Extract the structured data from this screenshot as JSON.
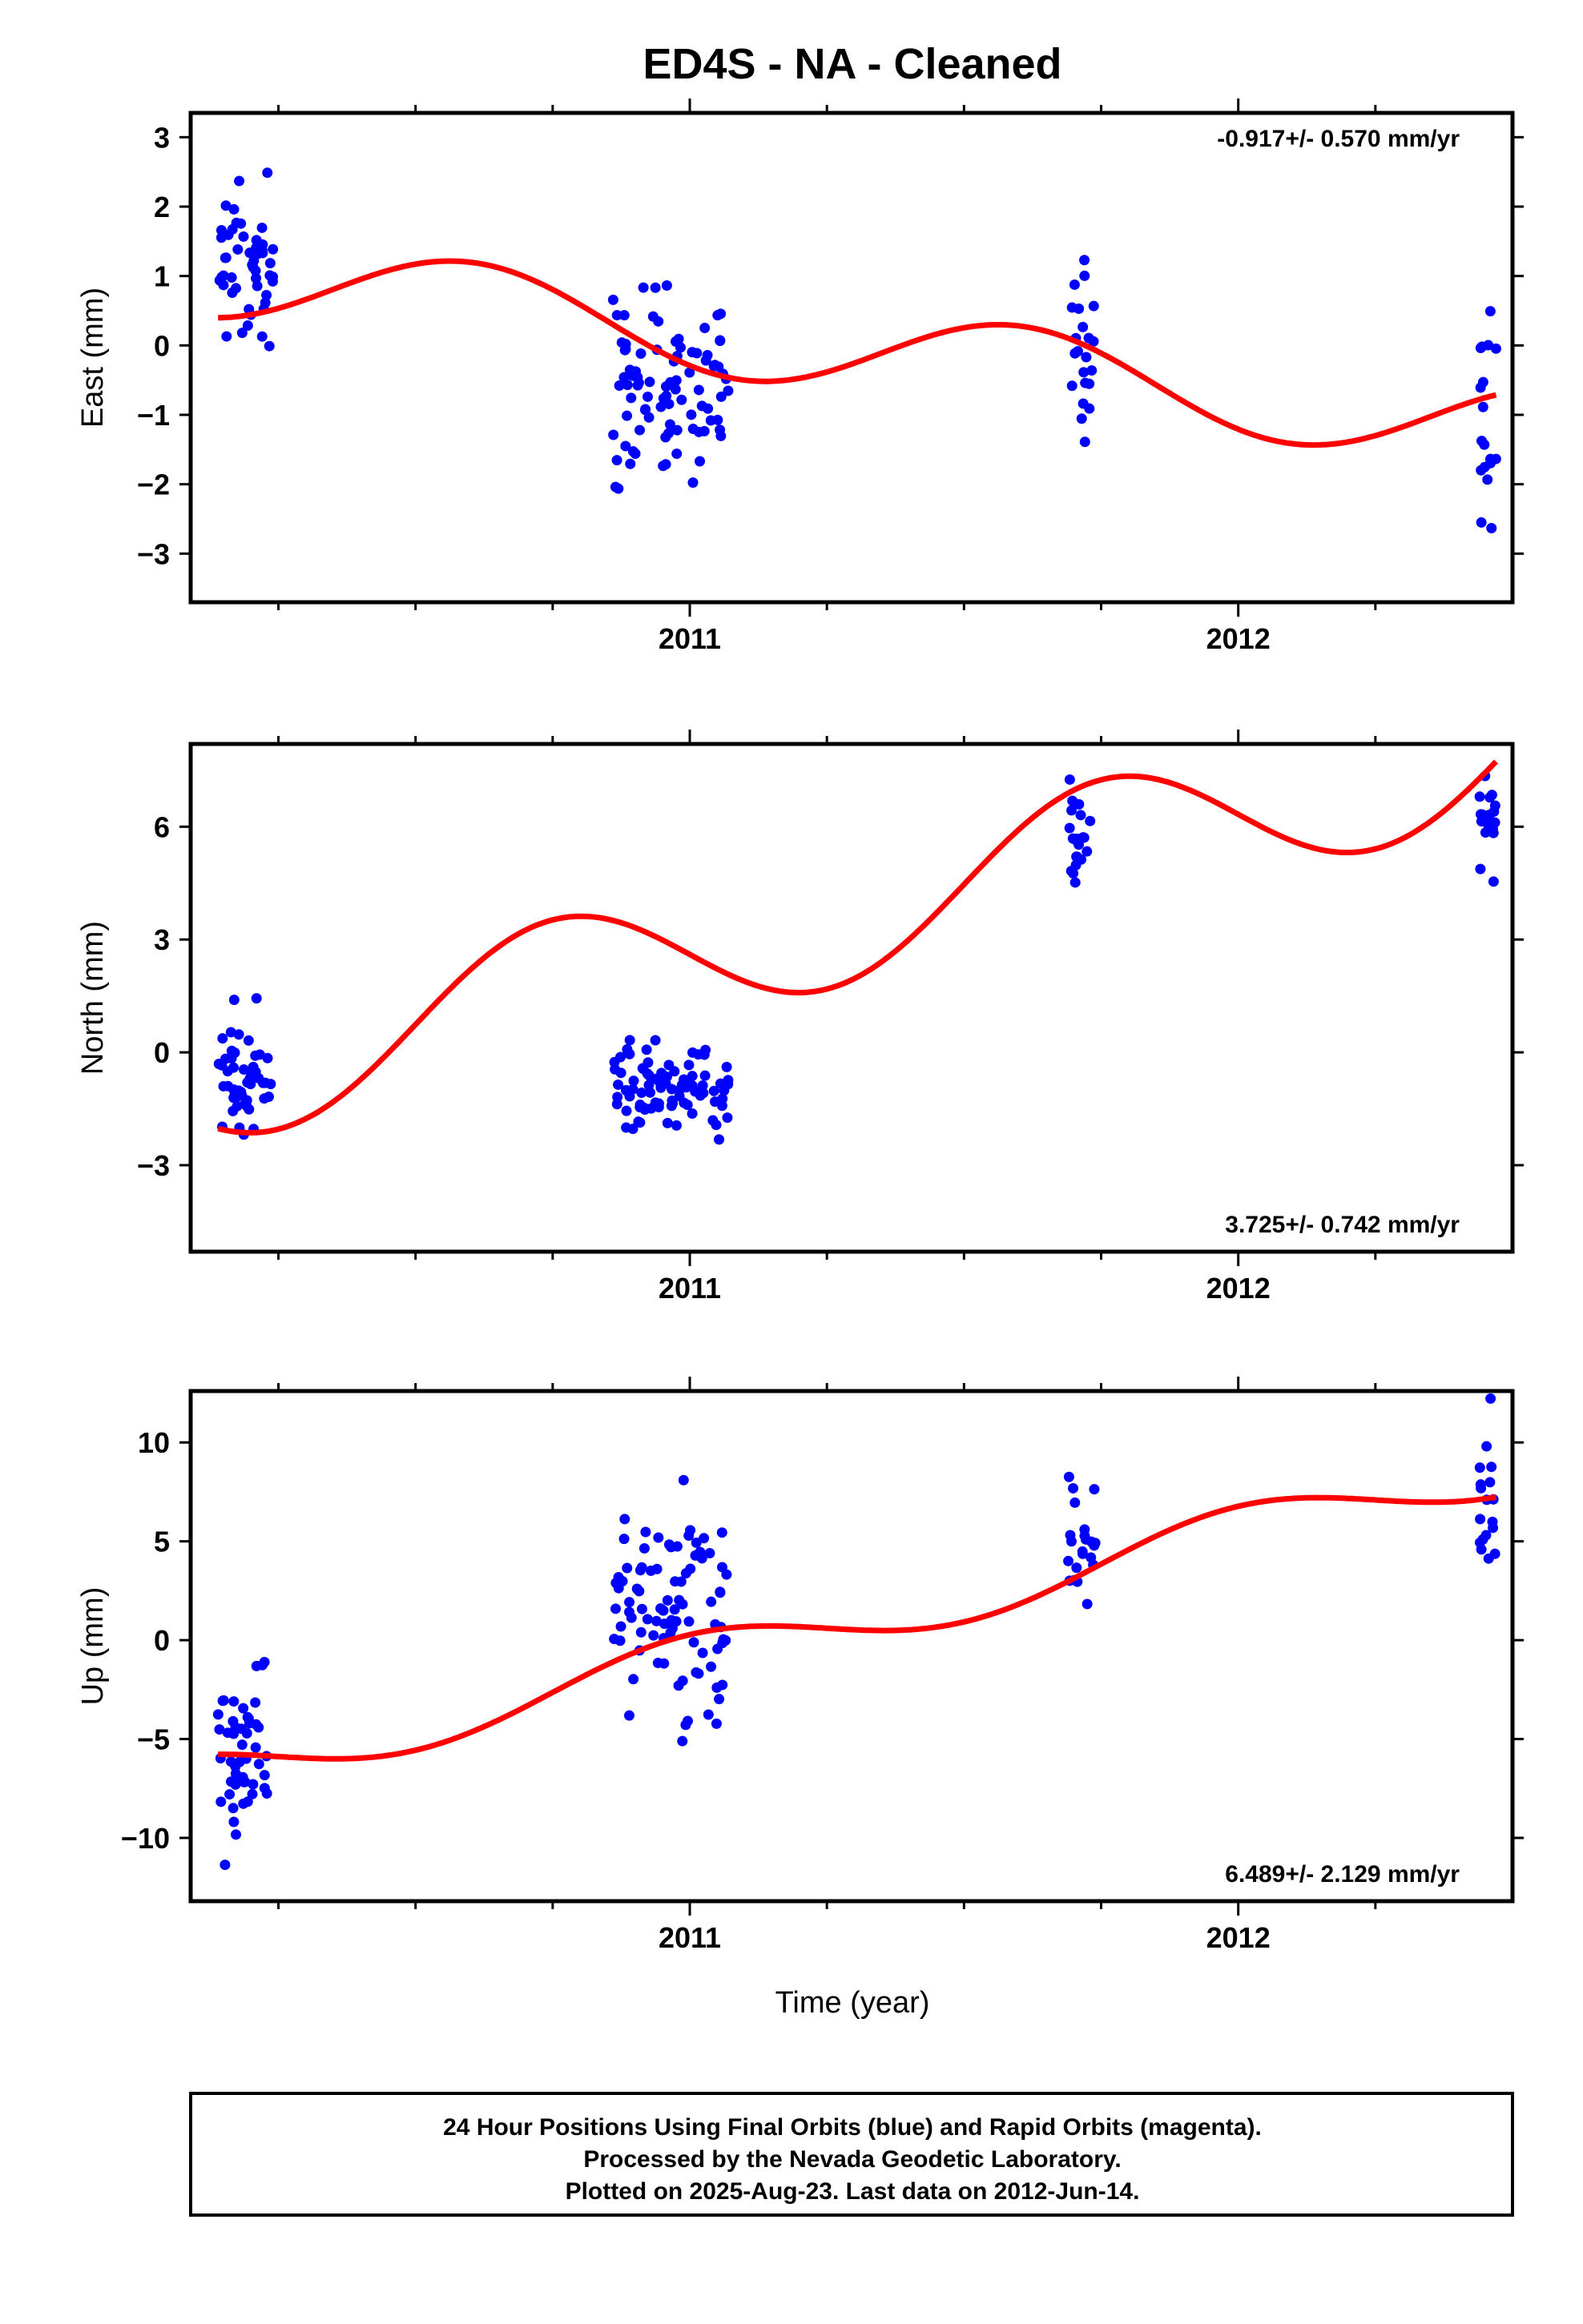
{
  "chart_data": {
    "title": "ED4S  - NA - Cleaned",
    "xlabel": "Time (year)",
    "xlim": [
      2010.09,
      2012.5
    ],
    "x_ticks": [
      2011,
      2012
    ],
    "x_minor_ticks": [
      2010.25,
      2010.5,
      2010.75,
      2011.25,
      2011.5,
      2011.75,
      2012.25
    ],
    "colors": {
      "data": "#0000ff",
      "fit": "#ff0000",
      "frame": "#000000"
    },
    "panels": [
      {
        "type": "scatter",
        "ylabel": "East (mm)",
        "ylim": [
          -3.7,
          3.35
        ],
        "yticks": [
          -3,
          -2,
          -1,
          0,
          1,
          2,
          3
        ],
        "rate": "-0.917+/- 0.570 mm/yr",
        "rate_position": "top-right",
        "fit_model": {
          "t0": 2010.14,
          "base": 1.0,
          "trend": -0.917,
          "amplitude": 0.62,
          "phase_year": 2010.6
        },
        "clusters": [
          {
            "name": "early 2010",
            "start": 2010.14,
            "end": 2010.24,
            "mean": 1.1,
            "spread": 0.95,
            "count": 50
          },
          {
            "name": "late 2010",
            "start": 2010.86,
            "end": 2011.07,
            "mean": -0.6,
            "spread": 1.1,
            "count": 90
          },
          {
            "name": "autumn 2011",
            "start": 2011.69,
            "end": 2011.74,
            "mean": 0.0,
            "spread": 1.05,
            "count": 22
          },
          {
            "name": "mid 2012",
            "start": 2012.44,
            "end": 2012.47,
            "mean": -1.4,
            "spread": 1.2,
            "count": 18
          }
        ]
      },
      {
        "type": "scatter",
        "ylabel": "North (mm)",
        "ylim": [
          -5.3,
          8.2
        ],
        "yticks": [
          -3,
          0,
          3,
          6
        ],
        "rate": "3.725+/- 0.742 mm/yr",
        "rate_position": "bottom-right",
        "fit_model": {
          "t0": 2010.14,
          "base": -0.6,
          "trend": 3.725,
          "amplitude": 1.85,
          "phase_year": 2010.75
        },
        "clusters": [
          {
            "name": "early 2010",
            "start": 2010.14,
            "end": 2010.24,
            "mean": -0.4,
            "spread": 1.2,
            "count": 50
          },
          {
            "name": "late 2010",
            "start": 2010.86,
            "end": 2011.07,
            "mean": -0.8,
            "spread": 1.0,
            "count": 90
          },
          {
            "name": "autumn 2011",
            "start": 2011.69,
            "end": 2011.74,
            "mean": 5.5,
            "spread": 1.05,
            "count": 22
          },
          {
            "name": "mid 2012",
            "start": 2012.44,
            "end": 2012.47,
            "mean": 5.9,
            "spread": 1.1,
            "count": 18
          }
        ]
      },
      {
        "type": "scatter",
        "ylabel": "Up (mm)",
        "ylim": [
          -13.2,
          12.6
        ],
        "yticks": [
          -10,
          -5,
          0,
          5,
          10
        ],
        "rate": "6.489+/- 2.129 mm/yr",
        "rate_position": "bottom-right",
        "fit_model": {
          "t0": 2010.14,
          "base": -6.6,
          "trend": 6.489,
          "amplitude": 1.3,
          "phase_year": 2011.0
        },
        "clusters": [
          {
            "name": "early 2010",
            "start": 2010.14,
            "end": 2010.24,
            "mean": -5.8,
            "spread": 3.4,
            "count": 50
          },
          {
            "name": "late 2010",
            "start": 2010.86,
            "end": 2011.07,
            "mean": 1.5,
            "spread": 4.4,
            "count": 90
          },
          {
            "name": "autumn 2011",
            "start": 2011.69,
            "end": 2011.74,
            "mean": 5.0,
            "spread": 2.4,
            "count": 22
          },
          {
            "name": "mid 2012",
            "start": 2012.44,
            "end": 2012.47,
            "mean": 7.4,
            "spread": 3.2,
            "count": 18
          }
        ]
      }
    ]
  },
  "footer": {
    "line1": "24 Hour Positions Using Final Orbits (blue) and Rapid Orbits (magenta).",
    "line2": "Processed by the Nevada Geodetic Laboratory.",
    "line3": "Plotted on 2025-Aug-23. Last data on 2012-Jun-14."
  }
}
